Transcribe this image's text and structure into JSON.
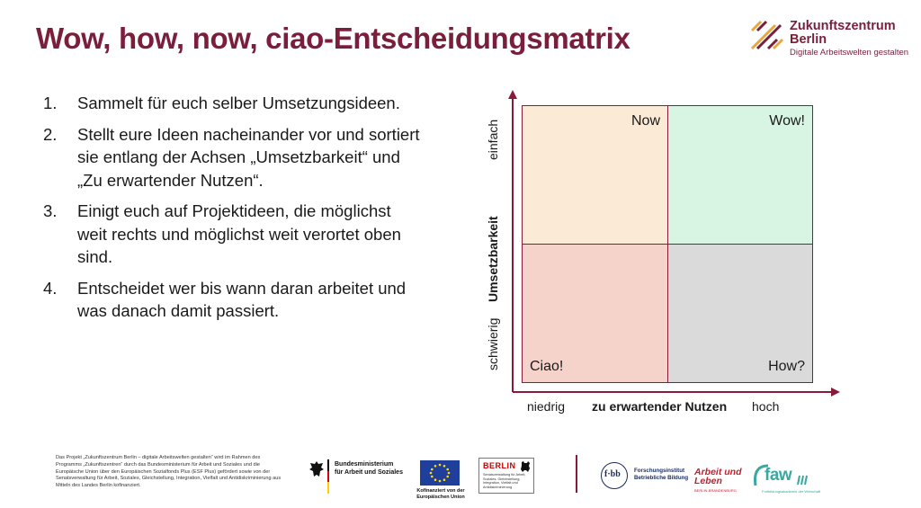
{
  "slide": {
    "title": "Wow, how, now, ciao-Entscheidungsmatrix"
  },
  "brand": {
    "name": "Zukunftszentrum",
    "city": "Berlin",
    "tagline": "Digitale Arbeitswelten gestalten",
    "accent_color": "#7a1e3c"
  },
  "steps": [
    {
      "num": "1.",
      "text": "Sammelt für euch selber Umsetzungsideen."
    },
    {
      "num": "2.",
      "text": "Stellt eure Ideen nacheinander vor und sortiert sie entlang der Achsen „Umsetzbarkeit“ und „Zu erwartender Nutzen“."
    },
    {
      "num": "3.",
      "text": "Einigt euch auf Projektideen, die möglichst weit rechts und möglichst weit verortet oben sind."
    },
    {
      "num": "4.",
      "text": "Entscheidet wer bis wann daran arbeitet und was danach damit passiert."
    }
  ],
  "matrix": {
    "quadrants": {
      "top_left": {
        "label": "Now",
        "color": "#fbead6"
      },
      "top_right": {
        "label": "Wow!",
        "color": "#d8f5e3"
      },
      "bottom_left": {
        "label": "Ciao!",
        "color": "#f5d3cb"
      },
      "bottom_right": {
        "label": "How?",
        "color": "#dadada"
      }
    },
    "x_axis": {
      "label": "zu erwartender Nutzen",
      "low": "niedrig",
      "high": "hoch"
    },
    "y_axis": {
      "label": "Umsetzbarkeit",
      "low": "schwierig",
      "high": "einfach"
    },
    "axis_color": "#8a1a3a"
  },
  "footer": {
    "funding_text": "Das Projekt „Zukunftszentrum Berlin – digitale Arbeitswelten gestalten“ wird im Rahmen des Programms „Zukunftszentren“ durch das Bundesministerium für Arbeit und Soziales und die Europäische Union über den Europäischen Sozialfonds Plus (ESF Plus) gefördert sowie von der Senatsverwaltung für Arbeit, Soziales, Gleichstellung, Integration, Vielfalt und Antidiskriminierung aus Mitteln des Landes Berlin kofinanziert.",
    "bmas_line1": "Bundesministerium",
    "bmas_line2": "für Arbeit und Soziales",
    "eu_caption_line1": "Kofinanziert von der",
    "eu_caption_line2": "Europäischen Union",
    "berlin_word": "BERLIN",
    "berlin_sub": "Senatsverwaltung für Arbeit, Soziales, Gleichstellung, Integration, Vielfalt und Antidiskriminierung",
    "fbb_abbr": "f·bb",
    "fbb_line1": "Forschungsinstitut",
    "fbb_line2": "Betriebliche Bildung",
    "aul_line1": "Arbeit und",
    "aul_line2": "Leben",
    "aul_sub": "BERLIN-BRANDENBURG",
    "faw_name": "faw",
    "faw_sub": "Fortbildungsakademie der Wirtschaft"
  }
}
